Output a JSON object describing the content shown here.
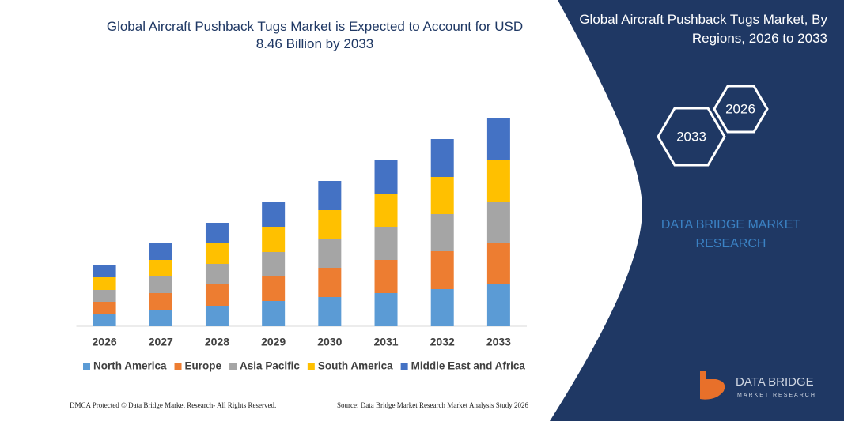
{
  "chart_data": {
    "type": "stacked-bar",
    "title": "Global Aircraft Pushback Tugs Market is Expected to Account for USD 8.46 Billion by 2033",
    "categories": [
      "2026",
      "2027",
      "2028",
      "2029",
      "2030",
      "2031",
      "2032",
      "2033"
    ],
    "series": [
      {
        "name": "North America",
        "color": "#5b9bd5",
        "values": [
          15,
          21,
          26,
          32,
          37,
          42,
          47,
          53
        ]
      },
      {
        "name": "Europe",
        "color": "#ed7d31",
        "values": [
          16,
          21,
          27,
          31,
          37,
          42,
          48,
          52
        ]
      },
      {
        "name": "Asia Pacific",
        "color": "#a5a5a5",
        "values": [
          15,
          21,
          26,
          31,
          36,
          42,
          47,
          52
        ]
      },
      {
        "name": "South America",
        "color": "#ffc000",
        "values": [
          16,
          21,
          26,
          32,
          37,
          42,
          47,
          53
        ]
      },
      {
        "name": "Middle East and Africa",
        "color": "#4472c4",
        "values": [
          16,
          21,
          26,
          31,
          37,
          42,
          48,
          53
        ]
      }
    ],
    "ylim": [
      0,
      270
    ],
    "legend": "bottom"
  },
  "panel": {
    "title": "Global Aircraft Pushback Tugs Market, By Regions, 2026 to 2033",
    "badges": [
      "2026",
      "2033"
    ],
    "brand": "DATA BRIDGE MARKET RESEARCH"
  },
  "logo": {
    "name": "DATA BRIDGE",
    "tagline": "MARKET RESEARCH"
  },
  "footer": {
    "left": "DMCA Protected © Data Bridge Market Research- All Rights Reserved.",
    "right": "Source: Data Bridge Market Research Market Analysis Study 2026"
  }
}
